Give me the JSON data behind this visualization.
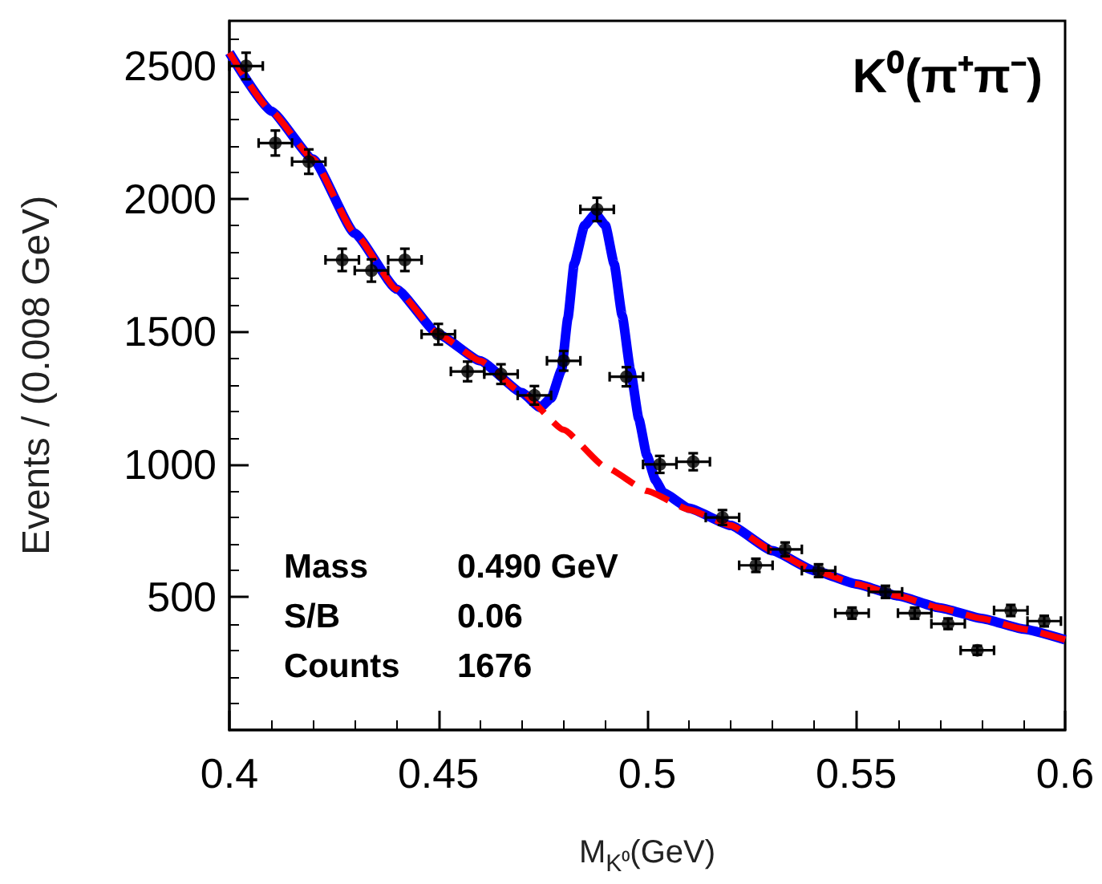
{
  "chart_data": {
    "type": "scatter",
    "title": "K⁰(π⁺π⁻)",
    "xlabel": "M$_{K⁰}$(GeV)",
    "ylabel": "Events / (0.008 GeV)",
    "xlim": [
      0.4,
      0.6
    ],
    "xticks": [
      0.4,
      0.45,
      0.5,
      0.55,
      0.6
    ],
    "ylim": [
      0,
      2670
    ],
    "yticks": [
      500,
      1000,
      1500,
      2000,
      2500
    ],
    "grid": false,
    "marker": "circle",
    "annotations": [
      "Mass 0.490 GeV",
      "S/B 0.06",
      "Counts 1676"
    ],
    "series": [
      {
        "type": "line",
        "color": "#0000ff",
        "line_style": "solid",
        "marker": "none",
        "x": [
          0.4,
          0.41,
          0.42,
          0.43,
          0.44,
          0.45,
          0.46,
          0.47,
          0.4744,
          0.477,
          0.4795,
          0.481,
          0.4825,
          0.485,
          0.4876,
          0.49,
          0.4921,
          0.494,
          0.496,
          0.498,
          0.4999,
          0.502,
          0.5038,
          0.51,
          0.52,
          0.53,
          0.54,
          0.55,
          0.56,
          0.57,
          0.58,
          0.59,
          0.6
        ],
        "values": [
          2550,
          2330,
          2150,
          1870,
          1660,
          1490,
          1390,
          1270,
          1214,
          1250,
          1356,
          1550,
          1754,
          1900,
          1944,
          1900,
          1754,
          1560,
          1354,
          1170,
          1034,
          940,
          894,
          835,
          770,
          675,
          600,
          550,
          505,
          460,
          420,
          380,
          340
        ]
      },
      {
        "type": "line",
        "color": "#ff0000",
        "line_style": "dashed",
        "marker": "none",
        "x": [
          0.4,
          0.41,
          0.42,
          0.43,
          0.44,
          0.45,
          0.46,
          0.47,
          0.48,
          0.49,
          0.5,
          0.51,
          0.52,
          0.53,
          0.54,
          0.55,
          0.56,
          0.57,
          0.58,
          0.59,
          0.6
        ],
        "values": [
          2550,
          2330,
          2150,
          1870,
          1660,
          1490,
          1390,
          1270,
          1130,
          990,
          900,
          830,
          770,
          675,
          600,
          550,
          505,
          460,
          420,
          380,
          340
        ]
      },
      {
        "color": "#000000",
        "x": [
          0.404,
          0.411,
          0.419,
          0.427,
          0.434,
          0.442,
          0.45,
          0.457,
          0.465,
          0.473,
          0.48,
          0.488,
          0.495,
          0.503,
          0.511,
          0.518,
          0.526,
          0.533,
          0.541,
          0.549,
          0.557,
          0.564,
          0.572,
          0.579,
          0.587,
          0.595
        ],
        "values": [
          2500,
          2210,
          2140,
          1770,
          1730,
          1770,
          1490,
          1350,
          1340,
          1260,
          1390,
          1960,
          1330,
          1000,
          1010,
          800,
          620,
          680,
          600,
          440,
          520,
          440,
          400,
          300,
          450,
          410
        ],
        "errors": [
          50,
          47,
          46,
          42,
          42,
          42,
          39,
          37,
          37,
          35,
          37,
          44,
          36,
          32,
          32,
          28,
          25,
          26,
          24,
          21,
          23,
          21,
          20,
          17,
          21,
          20
        ],
        "xerrors": [
          0.004,
          0.004,
          0.004,
          0.004,
          0.004,
          0.004,
          0.004,
          0.004,
          0.004,
          0.004,
          0.004,
          0.004,
          0.004,
          0.004,
          0.004,
          0.004,
          0.004,
          0.004,
          0.004,
          0.004,
          0.004,
          0.004,
          0.004,
          0.004,
          0.004,
          0.004
        ]
      }
    ]
  }
}
